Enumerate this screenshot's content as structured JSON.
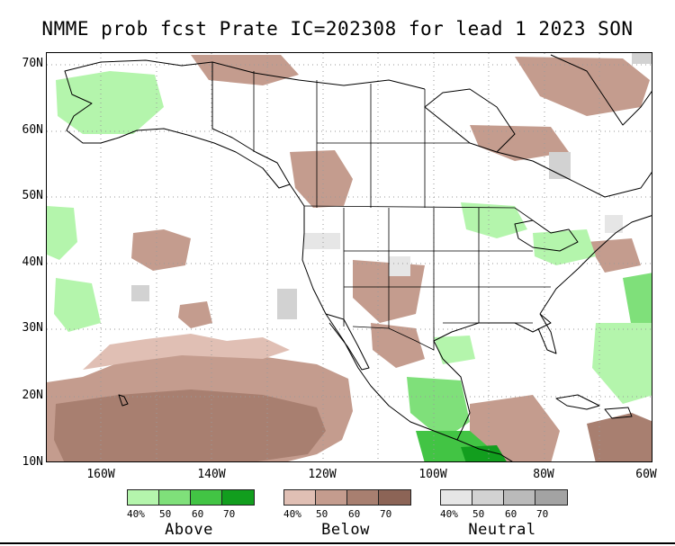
{
  "title": "NMME prob fcst Prate IC=202308 for lead 1 2023 SON",
  "lat_labels": [
    "70N",
    "60N",
    "50N",
    "40N",
    "30N",
    "20N",
    "10N"
  ],
  "lon_labels": [
    "160W",
    "140W",
    "120W",
    "100W",
    "80W",
    "60W"
  ],
  "legend": {
    "above": {
      "name": "Above",
      "ticks": [
        "40%",
        "50",
        "60",
        "70"
      ],
      "colors": [
        "#b4f5ac",
        "#7fe07a",
        "#42c444",
        "#129e1e"
      ]
    },
    "below": {
      "name": "Below",
      "ticks": [
        "40%",
        "50",
        "60",
        "70"
      ],
      "colors": [
        "#e0bfb4",
        "#c49c8e",
        "#a87f70",
        "#8c6456"
      ]
    },
    "neutral": {
      "name": "Neutral",
      "ticks": [
        "40%",
        "50",
        "60",
        "70"
      ],
      "colors": [
        "#e6e6e6",
        "#d2d2d2",
        "#bababa",
        "#a3a3a3"
      ]
    }
  },
  "colors": {
    "coastline": "#000000",
    "gridline": "#9a9a9a",
    "background": "#ffffff"
  }
}
